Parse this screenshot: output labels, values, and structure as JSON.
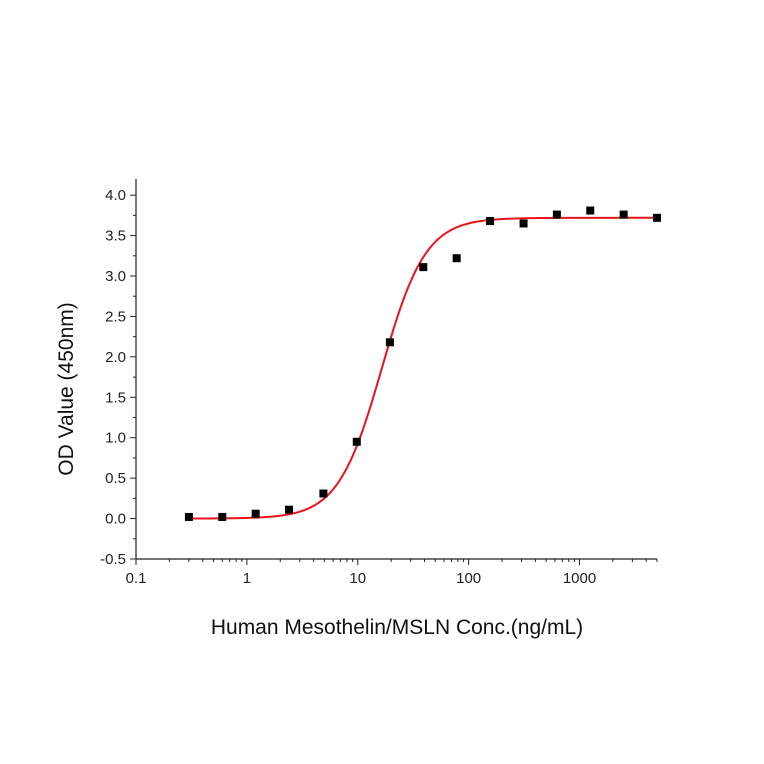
{
  "chart_data": {
    "type": "scatter",
    "title": "",
    "xlabel": "Human Mesothelin/MSLN Conc.(ng/mL)",
    "ylabel": "OD Value (450nm)",
    "x_scale": "log",
    "xlim": [
      0.1,
      5000
    ],
    "ylim": [
      -0.5,
      4.2
    ],
    "x_ticks": [
      0.1,
      1,
      10,
      100,
      1000
    ],
    "x_tick_labels": [
      "0.1",
      "1",
      "10",
      "100",
      "1000"
    ],
    "y_ticks": [
      -0.5,
      0,
      0.5,
      1,
      1.5,
      2,
      2.5,
      3,
      3.5,
      4
    ],
    "y_tick_labels": [
      "-0.5",
      "0.0",
      "0.5",
      "1.0",
      "1.5",
      "2.0",
      "2.5",
      "3.0",
      "3.5",
      "4.0"
    ],
    "grid": false,
    "series": [
      {
        "kind": "points",
        "color": "#000000",
        "marker": "square",
        "x": [
          0.3,
          0.6,
          1.2,
          2.4,
          4.9,
          9.8,
          19.5,
          39,
          78,
          156,
          313,
          625,
          1250,
          2500,
          5000
        ],
        "y": [
          0.02,
          0.02,
          0.06,
          0.11,
          0.31,
          0.95,
          2.18,
          3.11,
          3.22,
          3.68,
          3.65,
          3.76,
          3.81,
          3.76,
          3.72
        ]
      },
      {
        "kind": "fit",
        "color": "#e8141b",
        "model": "4PL",
        "bottom": 0.0,
        "top": 3.72,
        "ec50": 16.5,
        "hill": 2.2,
        "x_range": [
          0.3,
          5000
        ]
      }
    ]
  }
}
